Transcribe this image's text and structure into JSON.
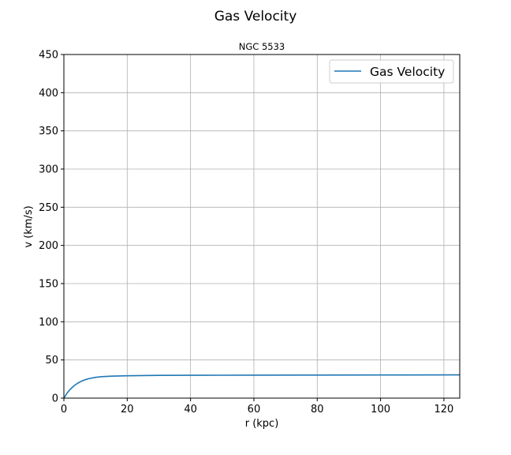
{
  "figure": {
    "suptitle": "Gas Velocity"
  },
  "chart_data": {
    "type": "line",
    "title": "NGC 5533",
    "xlabel": "r (kpc)",
    "ylabel": "v (km/s)",
    "xlim": [
      0,
      125
    ],
    "ylim": [
      0,
      450
    ],
    "xticks": [
      0,
      20,
      40,
      60,
      80,
      100,
      120
    ],
    "yticks": [
      0,
      50,
      100,
      150,
      200,
      250,
      300,
      350,
      400,
      450
    ],
    "grid": true,
    "legend_position": "top-right",
    "series": [
      {
        "name": "Gas Velocity",
        "color": "#1f77b4",
        "x": [
          0,
          1,
          2,
          3,
          4,
          5,
          6,
          7,
          8,
          10,
          12,
          15,
          20,
          25,
          30,
          40,
          50,
          60,
          80,
          100,
          125
        ],
        "y": [
          0,
          6.5,
          11.5,
          15.5,
          18.5,
          21,
          23,
          24.5,
          25.6,
          27.2,
          28.1,
          28.8,
          29.3,
          29.6,
          29.8,
          29.9,
          30,
          30.1,
          30.2,
          30.3,
          30.4
        ]
      }
    ]
  }
}
